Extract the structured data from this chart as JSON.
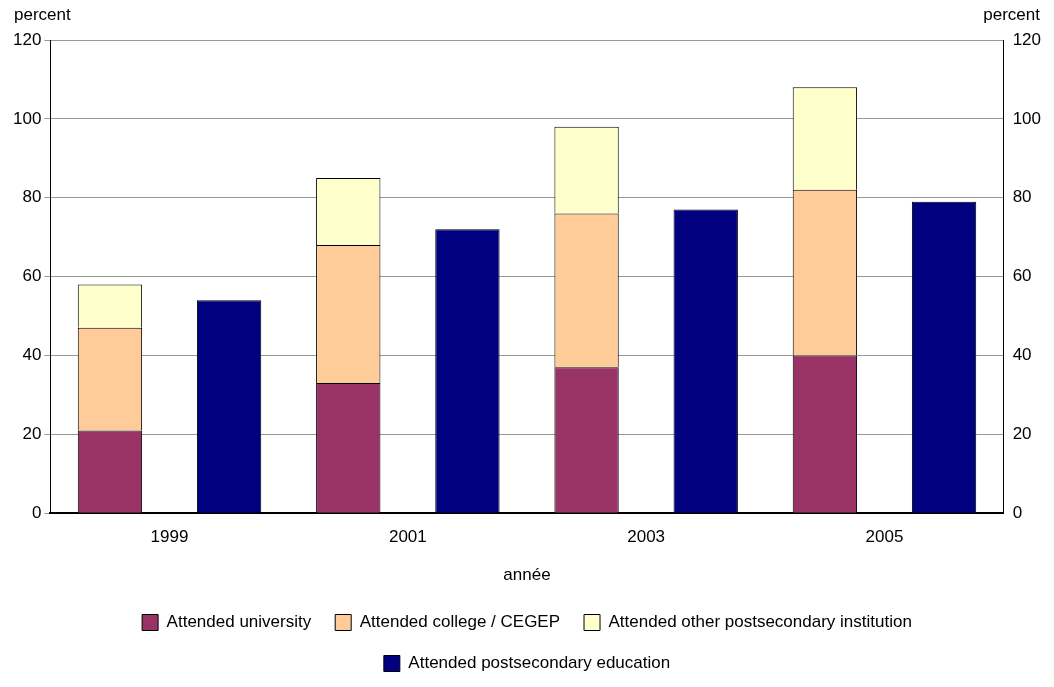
{
  "chart_data": {
    "type": "bar",
    "xlabel": "année",
    "ylabel": "percent",
    "y2label": "percent",
    "categories": [
      "1999",
      null,
      "2001",
      null,
      "2003",
      null,
      "2005",
      null
    ],
    "stacked": true,
    "series": [
      {
        "name": "Attended university",
        "color": "#993366",
        "values": [
          21,
          null,
          33,
          null,
          37,
          null,
          40,
          null
        ]
      },
      {
        "name": "Attended college / CEGEP",
        "color": "#ffcc99",
        "values": [
          26,
          null,
          35,
          null,
          39,
          null,
          42,
          null
        ]
      },
      {
        "name": "Attended other postsecondary institution",
        "color": "#ffffcc",
        "values": [
          11,
          null,
          17,
          null,
          22,
          null,
          26,
          null
        ]
      },
      {
        "name": "Attended postsecondary education",
        "color": "#000080",
        "values": [
          null,
          54,
          null,
          72,
          null,
          77,
          null,
          79
        ]
      }
    ],
    "ylim": [
      0,
      120
    ],
    "yticks": [
      0,
      20,
      40,
      60,
      80,
      100,
      120
    ],
    "y2lim": [
      0,
      120
    ],
    "y2ticks": [
      0,
      20,
      40,
      60,
      80,
      100,
      120
    ],
    "grid": "y",
    "legend": "bottom"
  }
}
